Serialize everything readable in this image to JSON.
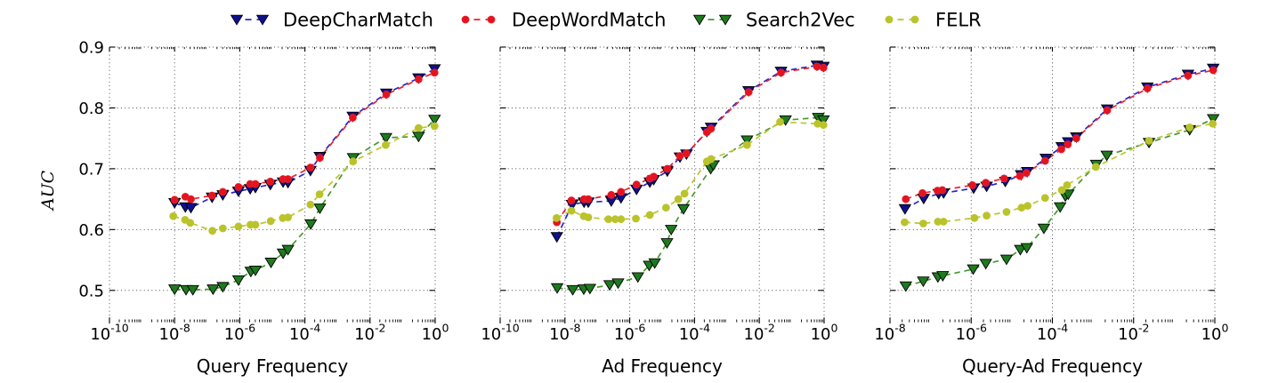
{
  "figure": {
    "ylabel": "AUC",
    "background": "#ffffff",
    "grid": {
      "on": true,
      "style": "dotted",
      "color": "#4d4d4d"
    },
    "legend": {
      "position": "top",
      "entries": [
        {
          "name": "DeepCharMatch",
          "marker": "triangle-down",
          "marker_color": "#10108f",
          "line_color": "#2727cc"
        },
        {
          "name": "DeepWordMatch",
          "marker": "circle",
          "marker_color": "#e3131f",
          "line_color": "#e8222e"
        },
        {
          "name": "Search2Vec",
          "marker": "triangle-down",
          "marker_color": "#1e7a1e",
          "line_color": "#4a9733"
        },
        {
          "name": "FELR",
          "marker": "circle",
          "marker_color": "#b9c32b",
          "line_color": "#bcc52d"
        }
      ]
    },
    "yticks": [
      "0.5",
      "0.6",
      "0.7",
      "0.8",
      "0.9"
    ],
    "ylim": [
      0.45,
      0.9
    ]
  },
  "chart_data": [
    {
      "type": "line",
      "xlabel": "Query Frequency",
      "ylabel": "AUC",
      "xscale": "log",
      "xlim_exponents": [
        -10,
        0
      ],
      "xtick_base": "10",
      "xtick_exponents": [
        -10,
        -8,
        -6,
        -4,
        -2,
        0
      ],
      "ylim": [
        0.45,
        0.9
      ],
      "yticks": [
        0.5,
        0.6,
        0.7,
        0.8,
        0.9
      ],
      "show_ytick_labels": true,
      "series": [
        {
          "name": "DeepCharMatch",
          "x": [
            -8.0,
            -7.67,
            -7.5,
            -6.85,
            -6.52,
            -6.04,
            -5.68,
            -5.52,
            -5.06,
            -4.67,
            -4.52,
            -3.83,
            -3.54,
            -2.53,
            -1.5,
            -0.51,
            -0.02
          ],
          "y": [
            0.644,
            0.637,
            0.636,
            0.653,
            0.657,
            0.663,
            0.667,
            0.669,
            0.674,
            0.678,
            0.677,
            0.697,
            0.72,
            0.786,
            0.824,
            0.849,
            0.864
          ]
        },
        {
          "name": "DeepWordMatch",
          "x": [
            -8.0,
            -7.67,
            -7.5,
            -6.85,
            -6.52,
            -6.04,
            -5.68,
            -5.52,
            -5.06,
            -4.67,
            -4.52,
            -3.83,
            -3.54,
            -2.53,
            -1.5,
            -0.51,
            -0.02
          ],
          "y": [
            0.649,
            0.654,
            0.65,
            0.656,
            0.662,
            0.67,
            0.675,
            0.675,
            0.679,
            0.683,
            0.683,
            0.702,
            0.718,
            0.784,
            0.822,
            0.847,
            0.858
          ]
        },
        {
          "name": "Search2Vec",
          "x": [
            -8.0,
            -7.65,
            -7.44,
            -6.82,
            -6.52,
            -6.04,
            -5.66,
            -5.52,
            -5.04,
            -4.67,
            -4.52,
            -3.82,
            -3.54,
            -2.52,
            -1.51,
            -0.51,
            -0.02
          ],
          "y": [
            0.502,
            0.501,
            0.501,
            0.502,
            0.506,
            0.517,
            0.531,
            0.533,
            0.546,
            0.561,
            0.567,
            0.609,
            0.635,
            0.718,
            0.751,
            0.753,
            0.781
          ]
        },
        {
          "name": "FELR",
          "x": [
            -8.04,
            -7.68,
            -7.52,
            -6.84,
            -6.52,
            -6.04,
            -5.67,
            -5.52,
            -5.05,
            -4.68,
            -4.52,
            -3.83,
            -3.55,
            -2.52,
            -1.52,
            -0.51,
            -0.02
          ],
          "y": [
            0.622,
            0.616,
            0.611,
            0.598,
            0.602,
            0.605,
            0.608,
            0.608,
            0.614,
            0.619,
            0.62,
            0.641,
            0.658,
            0.712,
            0.739,
            0.767,
            0.77
          ]
        }
      ]
    },
    {
      "type": "line",
      "xlabel": "Ad Frequency",
      "ylabel": "AUC",
      "xscale": "log",
      "xlim_exponents": [
        -10,
        0
      ],
      "xtick_base": "10",
      "xtick_exponents": [
        -10,
        -8,
        -6,
        -4,
        -2,
        0
      ],
      "ylim": [
        0.45,
        0.9
      ],
      "yticks": [
        0.5,
        0.6,
        0.7,
        0.8,
        0.9
      ],
      "show_ytick_labels": false,
      "series": [
        {
          "name": "DeepCharMatch",
          "x": [
            -8.25,
            -7.78,
            -7.41,
            -7.28,
            -6.57,
            -6.27,
            -5.79,
            -5.38,
            -5.26,
            -4.84,
            -4.45,
            -4.25,
            -3.62,
            -3.49,
            -2.33,
            -1.33,
            -0.22,
            -0.02
          ],
          "y": [
            0.588,
            0.641,
            0.645,
            0.645,
            0.647,
            0.652,
            0.666,
            0.678,
            0.682,
            0.696,
            0.719,
            0.724,
            0.761,
            0.768,
            0.828,
            0.86,
            0.87,
            0.868
          ]
        },
        {
          "name": "DeepWordMatch",
          "x": [
            -8.25,
            -7.8,
            -7.41,
            -7.28,
            -6.57,
            -6.27,
            -5.79,
            -5.38,
            -5.26,
            -4.84,
            -4.45,
            -4.25,
            -3.62,
            -3.49,
            -2.33,
            -1.33,
            -0.22,
            -0.02
          ],
          "y": [
            0.612,
            0.648,
            0.65,
            0.65,
            0.657,
            0.662,
            0.674,
            0.684,
            0.687,
            0.7,
            0.721,
            0.725,
            0.76,
            0.766,
            0.826,
            0.858,
            0.868,
            0.866
          ]
        },
        {
          "name": "Search2Vec",
          "x": [
            -8.24,
            -7.76,
            -7.42,
            -7.23,
            -6.62,
            -6.36,
            -5.75,
            -5.4,
            -5.23,
            -4.85,
            -4.72,
            -4.34,
            -3.5,
            -3.42,
            -2.38,
            -1.19,
            -0.18,
            -0.02
          ],
          "y": [
            0.504,
            0.501,
            0.502,
            0.503,
            0.509,
            0.512,
            0.522,
            0.541,
            0.545,
            0.578,
            0.6,
            0.634,
            0.7,
            0.706,
            0.747,
            0.78,
            0.784,
            0.78
          ]
        },
        {
          "name": "FELR",
          "x": [
            -8.26,
            -7.8,
            -7.42,
            -7.28,
            -6.66,
            -6.45,
            -6.27,
            -5.81,
            -5.38,
            -4.88,
            -4.5,
            -4.31,
            -3.62,
            -3.49,
            -2.38,
            -1.36,
            -0.2,
            -0.02
          ],
          "y": [
            0.619,
            0.631,
            0.622,
            0.62,
            0.617,
            0.617,
            0.617,
            0.618,
            0.624,
            0.636,
            0.65,
            0.659,
            0.712,
            0.716,
            0.739,
            0.777,
            0.774,
            0.772
          ]
        }
      ]
    },
    {
      "type": "line",
      "xlabel": "Query-Ad Frequency",
      "ylabel": "AUC",
      "xscale": "log",
      "xlim_exponents": [
        -8,
        0
      ],
      "xtick_base": "10",
      "xtick_exponents": [
        -8,
        -6,
        -4,
        -2,
        0
      ],
      "ylim": [
        0.45,
        0.9
      ],
      "yticks": [
        0.5,
        0.6,
        0.7,
        0.8,
        0.9
      ],
      "show_ytick_labels": false,
      "series": [
        {
          "name": "DeepCharMatch",
          "x": [
            -7.63,
            -7.17,
            -6.8,
            -6.68,
            -5.94,
            -5.62,
            -5.16,
            -4.77,
            -4.62,
            -4.16,
            -3.77,
            -3.61,
            -3.41,
            -2.65,
            -1.66,
            -0.66,
            -0.04
          ],
          "y": [
            0.634,
            0.651,
            0.659,
            0.66,
            0.668,
            0.671,
            0.679,
            0.69,
            0.695,
            0.717,
            0.736,
            0.744,
            0.752,
            0.798,
            0.834,
            0.855,
            0.865
          ]
        },
        {
          "name": "DeepWordMatch",
          "x": [
            -7.61,
            -7.2,
            -6.83,
            -6.71,
            -5.97,
            -5.64,
            -5.19,
            -4.8,
            -4.64,
            -4.18,
            -3.78,
            -3.62,
            -3.41,
            -2.65,
            -1.66,
            -0.66,
            -0.04
          ],
          "y": [
            0.65,
            0.66,
            0.664,
            0.665,
            0.673,
            0.677,
            0.684,
            0.688,
            0.693,
            0.713,
            0.732,
            0.74,
            0.75,
            0.796,
            0.832,
            0.853,
            0.862
          ]
        },
        {
          "name": "Search2Vec",
          "x": [
            -7.61,
            -7.18,
            -6.82,
            -6.7,
            -5.95,
            -5.64,
            -5.13,
            -4.79,
            -4.63,
            -4.21,
            -3.81,
            -3.68,
            -3.61,
            -2.92,
            -2.66,
            -1.62,
            -0.62,
            -0.04
          ],
          "y": [
            0.507,
            0.515,
            0.522,
            0.524,
            0.535,
            0.544,
            0.551,
            0.567,
            0.57,
            0.602,
            0.637,
            0.655,
            0.658,
            0.707,
            0.722,
            0.743,
            0.764,
            0.782
          ]
        },
        {
          "name": "FELR",
          "x": [
            -7.64,
            -7.18,
            -6.82,
            -6.68,
            -5.92,
            -5.62,
            -5.13,
            -4.76,
            -4.61,
            -4.18,
            -3.77,
            -3.64,
            -2.93,
            -1.62,
            -0.62,
            -0.05
          ],
          "y": [
            0.612,
            0.61,
            0.613,
            0.613,
            0.619,
            0.623,
            0.629,
            0.636,
            0.639,
            0.652,
            0.665,
            0.673,
            0.703,
            0.746,
            0.768,
            0.774
          ]
        }
      ]
    }
  ]
}
